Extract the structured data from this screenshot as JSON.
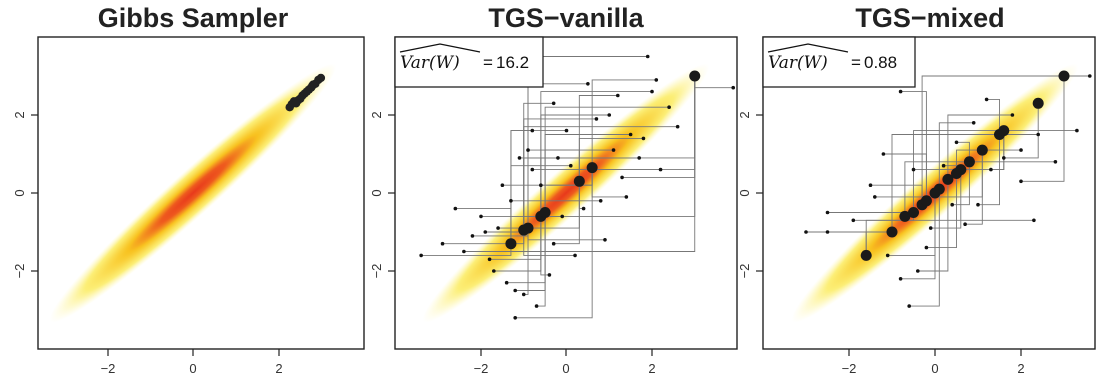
{
  "chart_data": [
    {
      "type": "scatter",
      "title": "Gibbs Sampler",
      "xlim": [
        -3.8,
        3.8
      ],
      "ylim": [
        -3.8,
        3.8
      ],
      "xticks": [
        "−2",
        "0",
        "2"
      ],
      "yticks": [
        "−2",
        "0",
        "2"
      ],
      "density": "bivariate normal, correlation ≈ 0.99, yellow-to-red heat shading",
      "points": [
        [
          2.25,
          2.2
        ],
        [
          2.35,
          2.35
        ],
        [
          2.45,
          2.38
        ],
        [
          2.55,
          2.5
        ],
        [
          2.6,
          2.55
        ],
        [
          2.7,
          2.65
        ],
        [
          2.78,
          2.75
        ],
        [
          2.85,
          2.8
        ],
        [
          2.92,
          2.9
        ],
        [
          2.98,
          2.95
        ],
        [
          2.3,
          2.28
        ],
        [
          2.5,
          2.42
        ],
        [
          2.65,
          2.6
        ],
        [
          2.8,
          2.78
        ],
        [
          2.4,
          2.3
        ],
        [
          2.75,
          2.7
        ]
      ],
      "annotation": null
    },
    {
      "type": "scatter",
      "title": "TGS−vanilla",
      "xlim": [
        -3.8,
        3.8
      ],
      "ylim": [
        -3.8,
        3.8
      ],
      "xticks": [
        "−2",
        "0",
        "2"
      ],
      "yticks": [
        "−2",
        "0",
        "2"
      ],
      "annotation": {
        "label": "Var(W)",
        "value": "16.2"
      },
      "big_points": [
        [
          -1.3,
          -1.3
        ],
        [
          -1.0,
          -0.95
        ],
        [
          -0.9,
          -0.9
        ],
        [
          -0.6,
          -0.6
        ],
        [
          -0.5,
          -0.5
        ],
        [
          0.3,
          0.3
        ],
        [
          0.6,
          0.65
        ],
        [
          3.0,
          3.0
        ]
      ],
      "small_points": [
        [
          -3.4,
          -1.6
        ],
        [
          -2.9,
          -1.3
        ],
        [
          -2.2,
          -1.1
        ],
        [
          -1.8,
          -1.7
        ],
        [
          -1.4,
          -2.3
        ],
        [
          -1.6,
          -0.9
        ],
        [
          -1.2,
          -3.2
        ],
        [
          -1.1,
          0.9
        ],
        [
          -0.8,
          1.6
        ],
        [
          -0.3,
          2.3
        ],
        [
          0.5,
          2.8
        ],
        [
          1.0,
          2.0
        ],
        [
          1.5,
          1.5
        ],
        [
          1.8,
          1.4
        ],
        [
          2.2,
          0.6
        ],
        [
          1.3,
          0.4
        ],
        [
          0.8,
          -0.2
        ],
        [
          0.2,
          -1.6
        ],
        [
          -0.1,
          -0.6
        ],
        [
          -0.4,
          -2.1
        ],
        [
          -0.7,
          -2.9
        ],
        [
          -0.9,
          1.1
        ],
        [
          -1.5,
          0.2
        ],
        [
          -2.0,
          -0.6
        ],
        [
          -2.6,
          -0.4
        ],
        [
          -1.9,
          -1.0
        ],
        [
          0.9,
          -1.2
        ],
        [
          1.7,
          0.9
        ],
        [
          2.4,
          2.2
        ],
        [
          1.2,
          2.5
        ],
        [
          2.1,
          2.9
        ],
        [
          3.9,
          2.7
        ],
        [
          0.0,
          1.6
        ],
        [
          -0.2,
          0.9
        ],
        [
          -1.0,
          -2.6
        ],
        [
          -1.7,
          -2.0
        ],
        [
          1.1,
          1.1
        ],
        [
          0.4,
          -0.4
        ],
        [
          -0.6,
          0.2
        ],
        [
          -2.4,
          -1.5
        ],
        [
          -1.3,
          -0.2
        ],
        [
          0.7,
          1.9
        ],
        [
          1.9,
          3.5
        ],
        [
          2.0,
          2.6
        ],
        [
          -1.2,
          -2.5
        ],
        [
          -0.3,
          -1.3
        ],
        [
          1.4,
          -0.1
        ],
        [
          -0.8,
          0.6
        ],
        [
          0.1,
          0.7
        ],
        [
          2.6,
          1.7
        ]
      ],
      "segments": "random-scan coordinate-wise moves drawn as axis-aligned grey lines"
    },
    {
      "type": "scatter",
      "title": "TGS−mixed",
      "xlim": [
        -3.8,
        3.8
      ],
      "ylim": [
        -3.8,
        3.8
      ],
      "xticks": [
        "−2",
        "0",
        "2"
      ],
      "yticks": [
        "−2",
        "0",
        "2"
      ],
      "annotation": {
        "label": "Var(W)",
        "value": "0.88"
      },
      "big_points": [
        [
          -1.6,
          -1.6
        ],
        [
          -1.0,
          -1.0
        ],
        [
          -0.7,
          -0.6
        ],
        [
          -0.5,
          -0.5
        ],
        [
          -0.3,
          -0.3
        ],
        [
          -0.2,
          -0.2
        ],
        [
          0.0,
          0.0
        ],
        [
          0.1,
          0.1
        ],
        [
          0.3,
          0.35
        ],
        [
          0.5,
          0.5
        ],
        [
          0.6,
          0.6
        ],
        [
          0.8,
          0.8
        ],
        [
          1.1,
          1.1
        ],
        [
          1.5,
          1.5
        ],
        [
          1.6,
          1.6
        ],
        [
          2.4,
          2.3
        ],
        [
          3.0,
          3.0
        ]
      ],
      "small_points": [
        [
          -2.5,
          -1.0
        ],
        [
          -3.0,
          -1.0
        ],
        [
          -2.5,
          -0.5
        ],
        [
          -1.9,
          -0.7
        ],
        [
          -1.5,
          0.2
        ],
        [
          -1.2,
          1.0
        ],
        [
          -0.8,
          -2.2
        ],
        [
          -0.6,
          -2.9
        ],
        [
          -0.4,
          -2.0
        ],
        [
          -0.2,
          -1.4
        ],
        [
          0.2,
          0.7
        ],
        [
          0.5,
          1.3
        ],
        [
          0.7,
          -0.8
        ],
        [
          1.0,
          -0.3
        ],
        [
          1.3,
          0.6
        ],
        [
          1.6,
          0.9
        ],
        [
          2.0,
          0.3
        ],
        [
          2.3,
          -0.7
        ],
        [
          2.4,
          1.5
        ],
        [
          2.8,
          0.8
        ],
        [
          3.3,
          1.6
        ],
        [
          3.6,
          3.0
        ],
        [
          -0.8,
          2.6
        ],
        [
          -1.1,
          -1.6
        ],
        [
          0.9,
          1.8
        ],
        [
          1.8,
          2.0
        ],
        [
          2.0,
          1.1
        ],
        [
          -0.1,
          -0.9
        ],
        [
          0.4,
          -0.3
        ],
        [
          -1.4,
          -0.1
        ],
        [
          1.2,
          2.4
        ],
        [
          -0.5,
          0.6
        ]
      ],
      "segments": "random-scan coordinate-wise moves drawn as axis-aligned grey lines"
    }
  ]
}
